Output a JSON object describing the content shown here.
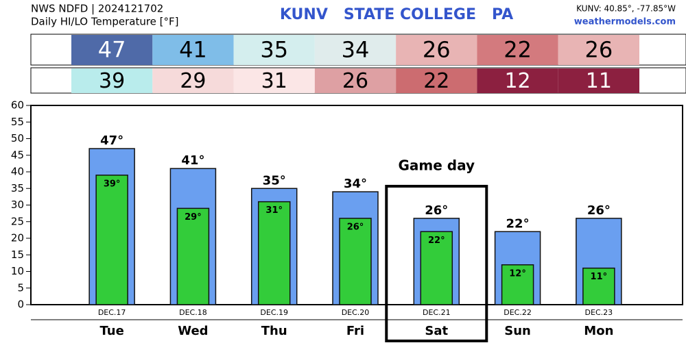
{
  "chart_data": {
    "type": "bar",
    "header": {
      "source": "NWS NDFD | 2024121702",
      "subtitle": "Daily HI/LO Temperature [°F]",
      "title": "KUNV   STATE COLLEGE   PA",
      "location": "KUNV: 40.85°, -77.85°W",
      "site": "weathermodels.com"
    },
    "categories": [
      "DEC.17",
      "DEC.18",
      "DEC.19",
      "DEC.20",
      "DEC.21",
      "DEC.22",
      "DEC.23"
    ],
    "weekdays": [
      "Tue",
      "Wed",
      "Thu",
      "Fri",
      "Sat",
      "Sun",
      "Mon"
    ],
    "series": [
      {
        "name": "HI",
        "color": "#6a9ff0",
        "values": [
          47,
          41,
          35,
          34,
          26,
          22,
          26
        ],
        "value_labels": [
          "47°",
          "41°",
          "35°",
          "34°",
          "26°",
          "22°",
          "26°"
        ],
        "cell_colors": [
          "#4f6aa8",
          "#7fbde8",
          "#d4eeee",
          "#e0ecec",
          "#e8b4b4",
          "#d37a7e",
          "#e8b4b4"
        ]
      },
      {
        "name": "LO",
        "color": "#33cc3a",
        "values": [
          39,
          29,
          31,
          26,
          22,
          12,
          11
        ],
        "value_labels": [
          "39°",
          "29°",
          "31°",
          "26°",
          "22°",
          "12°",
          "11°"
        ],
        "cell_colors": [
          "#b9ecec",
          "#f6dada",
          "#fbe6e6",
          "#dea0a3",
          "#cc6c70",
          "#8c2040",
          "#8c2040"
        ]
      }
    ],
    "annotations": [
      {
        "text": "Game day",
        "category": "Sat"
      }
    ],
    "ylim": [
      0,
      60
    ],
    "yticks": [
      0,
      5,
      10,
      15,
      20,
      25,
      30,
      35,
      40,
      45,
      50,
      55,
      60
    ]
  }
}
